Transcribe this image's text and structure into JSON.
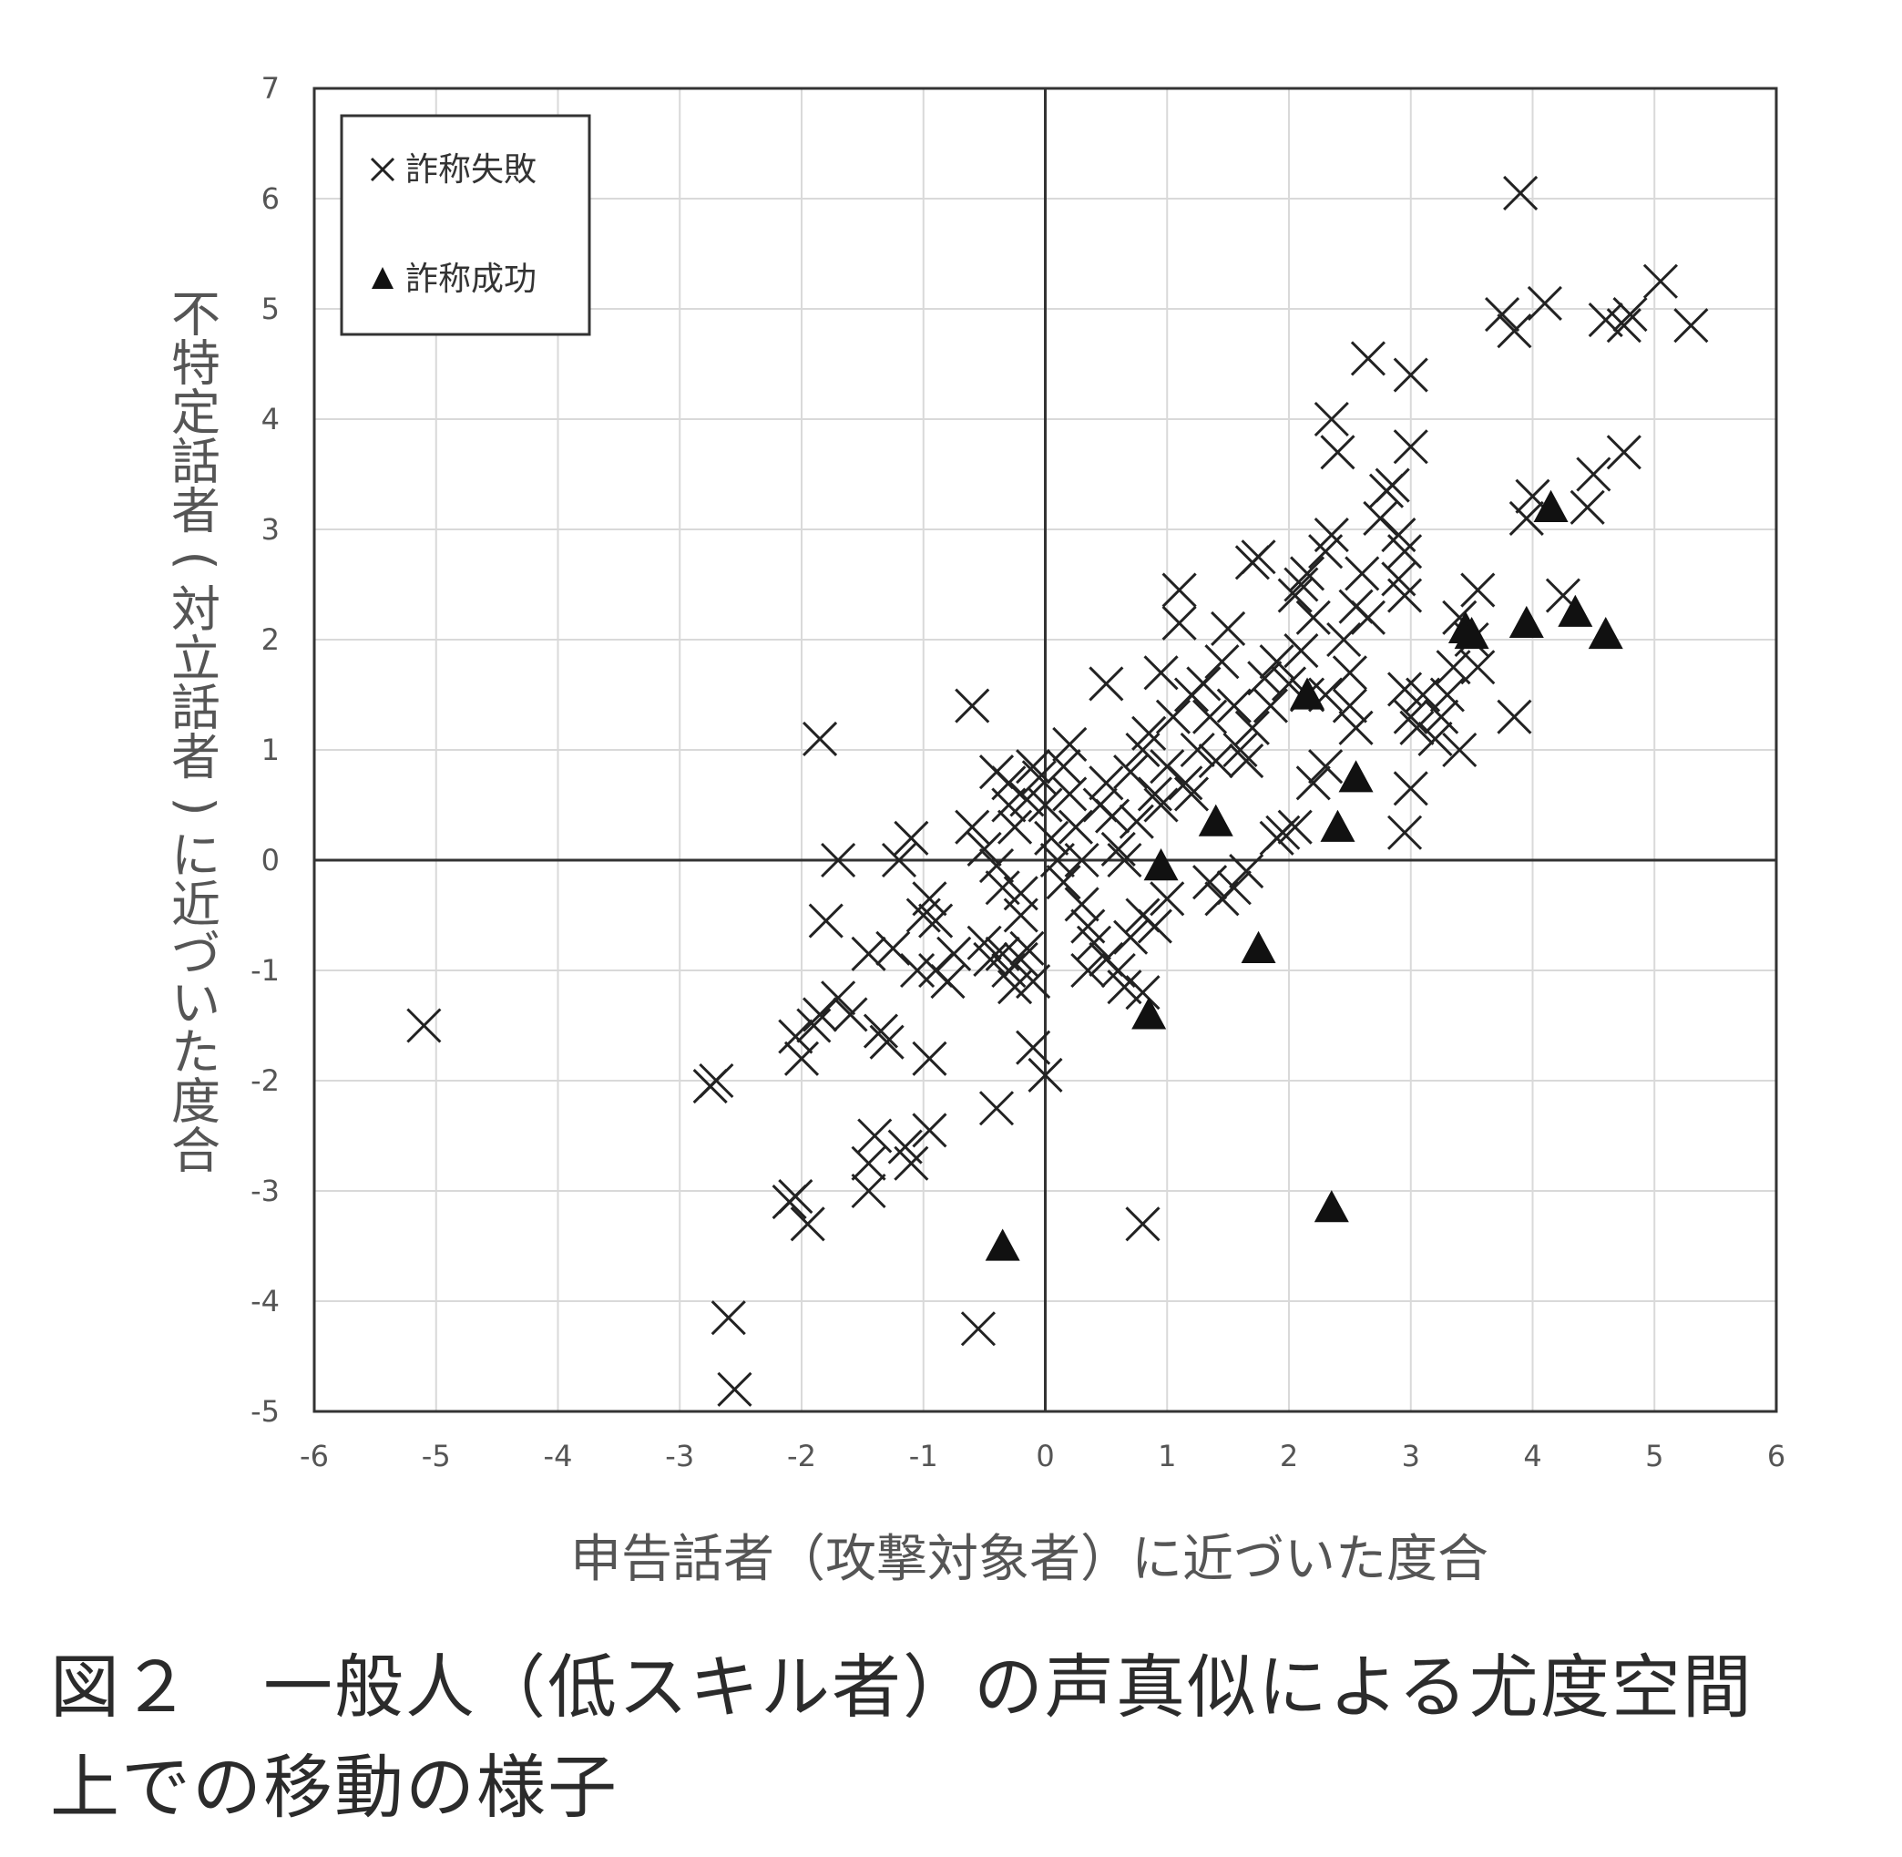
{
  "caption": {
    "line1": "図２　一般人（低スキル者）の声真似による尤度空間",
    "line2": "上での移動の様子"
  },
  "chart_data": {
    "type": "scatter",
    "xlabel": "申告話者（攻撃対象者）に近づいた度合",
    "ylabel": "不特定話者(対立話者)に近づいた度合",
    "xlim": [
      -6,
      6
    ],
    "ylim": [
      -5,
      7
    ],
    "x_ticks": [
      "-6",
      "-5",
      "-4",
      "-3",
      "-2",
      "-1",
      "0",
      "1",
      "2",
      "3",
      "4",
      "5",
      "6"
    ],
    "y_ticks": [
      "-5",
      "-4",
      "-3",
      "-2",
      "-1",
      "0",
      "1",
      "2",
      "3",
      "4",
      "5",
      "6",
      "7"
    ],
    "grid": true,
    "legend_position": "top-left",
    "series": [
      {
        "name": "詐称失敗",
        "marker": "x",
        "points": [
          [
            -5.1,
            -1.5
          ],
          [
            -2.7,
            -2.0
          ],
          [
            -2.75,
            -2.05
          ],
          [
            -2.6,
            -4.15
          ],
          [
            -2.55,
            -4.8
          ],
          [
            -2.05,
            -3.05
          ],
          [
            -2.1,
            -3.1
          ],
          [
            -1.95,
            -3.3
          ],
          [
            -1.85,
            1.1
          ],
          [
            -1.7,
            0.0
          ],
          [
            -1.8,
            -0.55
          ],
          [
            -2.05,
            -1.6
          ],
          [
            -2.0,
            -1.8
          ],
          [
            -1.9,
            -1.5
          ],
          [
            -1.85,
            -1.4
          ],
          [
            -1.7,
            -1.25
          ],
          [
            -1.6,
            -1.4
          ],
          [
            -1.45,
            -0.85
          ],
          [
            -1.35,
            -1.55
          ],
          [
            -1.3,
            -1.65
          ],
          [
            -1.25,
            -0.8
          ],
          [
            -1.2,
            0.0
          ],
          [
            -1.1,
            0.2
          ],
          [
            -1.0,
            -0.5
          ],
          [
            -0.95,
            -0.35
          ],
          [
            -0.9,
            -0.55
          ],
          [
            -1.05,
            -1.0
          ],
          [
            -0.95,
            -1.8
          ],
          [
            -1.4,
            -2.5
          ],
          [
            -1.45,
            -2.75
          ],
          [
            -1.45,
            -3.0
          ],
          [
            -1.15,
            -2.6
          ],
          [
            -1.1,
            -2.75
          ],
          [
            -0.95,
            -2.45
          ],
          [
            -0.6,
            1.4
          ],
          [
            -0.6,
            0.3
          ],
          [
            -0.5,
            0.1
          ],
          [
            -0.4,
            0.8
          ],
          [
            -0.3,
            0.7
          ],
          [
            -0.3,
            0.5
          ],
          [
            -0.25,
            0.3
          ],
          [
            -0.4,
            -0.05
          ],
          [
            -0.35,
            -0.25
          ],
          [
            -0.2,
            -0.3
          ],
          [
            -0.2,
            -0.5
          ],
          [
            -0.5,
            -0.75
          ],
          [
            -0.45,
            -0.9
          ],
          [
            -0.35,
            -0.85
          ],
          [
            -0.3,
            -1.0
          ],
          [
            -0.2,
            -0.9
          ],
          [
            -0.75,
            -0.85
          ],
          [
            -0.8,
            -1.1
          ],
          [
            -0.9,
            -1.0
          ],
          [
            -0.15,
            -0.8
          ],
          [
            -0.25,
            -1.15
          ],
          [
            -0.1,
            -1.1
          ],
          [
            -0.1,
            -1.7
          ],
          [
            0.0,
            -1.95
          ],
          [
            -0.4,
            -2.25
          ],
          [
            -0.55,
            -4.25
          ],
          [
            0.8,
            -3.3
          ],
          [
            0.8,
            -1.2
          ],
          [
            -0.1,
            0.85
          ],
          [
            -0.15,
            0.55
          ],
          [
            -0.05,
            0.75
          ],
          [
            0.0,
            0.5
          ],
          [
            0.05,
            0.2
          ],
          [
            0.1,
            0.0
          ],
          [
            0.15,
            -0.2
          ],
          [
            0.15,
            0.85
          ],
          [
            0.2,
            1.05
          ],
          [
            0.2,
            0.6
          ],
          [
            0.25,
            0.3
          ],
          [
            0.3,
            0.0
          ],
          [
            0.3,
            -0.4
          ],
          [
            0.35,
            -0.6
          ],
          [
            0.4,
            -0.75
          ],
          [
            0.35,
            -1.0
          ],
          [
            0.5,
            -0.9
          ],
          [
            0.6,
            -1.0
          ],
          [
            0.65,
            -1.15
          ],
          [
            0.7,
            -0.7
          ],
          [
            0.8,
            -0.5
          ],
          [
            0.9,
            -0.6
          ],
          [
            1.0,
            -0.35
          ],
          [
            0.45,
            0.5
          ],
          [
            0.5,
            0.7
          ],
          [
            0.55,
            0.4
          ],
          [
            0.5,
            1.6
          ],
          [
            0.6,
            0.1
          ],
          [
            0.65,
            0.0
          ],
          [
            0.75,
            0.35
          ],
          [
            0.7,
            0.8
          ],
          [
            0.8,
            1.0
          ],
          [
            0.85,
            1.15
          ],
          [
            0.9,
            0.6
          ],
          [
            0.95,
            1.7
          ],
          [
            0.95,
            0.5
          ],
          [
            1.0,
            0.85
          ],
          [
            1.05,
            1.3
          ],
          [
            1.1,
            2.15
          ],
          [
            1.1,
            2.45
          ],
          [
            1.15,
            0.7
          ],
          [
            1.2,
            1.5
          ],
          [
            1.2,
            0.6
          ],
          [
            1.3,
            1.6
          ],
          [
            1.25,
            1.0
          ],
          [
            1.35,
            1.3
          ],
          [
            1.4,
            0.9
          ],
          [
            1.35,
            -0.2
          ],
          [
            1.45,
            -0.35
          ],
          [
            1.55,
            -0.25
          ],
          [
            1.65,
            -0.1
          ],
          [
            1.45,
            1.8
          ],
          [
            1.5,
            2.1
          ],
          [
            1.55,
            1.4
          ],
          [
            1.6,
            1.0
          ],
          [
            1.65,
            0.9
          ],
          [
            1.7,
            1.2
          ],
          [
            1.7,
            2.7
          ],
          [
            1.75,
            2.75
          ],
          [
            1.8,
            1.65
          ],
          [
            1.85,
            1.4
          ],
          [
            1.9,
            1.8
          ],
          [
            1.9,
            0.2
          ],
          [
            1.95,
            0.25
          ],
          [
            2.05,
            0.3
          ],
          [
            2.0,
            1.6
          ],
          [
            2.05,
            2.4
          ],
          [
            2.1,
            2.5
          ],
          [
            2.15,
            2.6
          ],
          [
            2.1,
            1.9
          ],
          [
            2.15,
            1.5
          ],
          [
            2.2,
            2.2
          ],
          [
            2.2,
            0.7
          ],
          [
            2.3,
            0.85
          ],
          [
            2.3,
            1.5
          ],
          [
            2.3,
            2.8
          ],
          [
            2.35,
            2.95
          ],
          [
            2.35,
            4.0
          ],
          [
            2.4,
            3.7
          ],
          [
            2.45,
            2.0
          ],
          [
            2.5,
            1.7
          ],
          [
            2.5,
            1.4
          ],
          [
            2.55,
            2.3
          ],
          [
            2.55,
            1.2
          ],
          [
            2.6,
            2.6
          ],
          [
            2.65,
            2.2
          ],
          [
            2.65,
            4.55
          ],
          [
            2.75,
            3.1
          ],
          [
            2.8,
            3.35
          ],
          [
            2.85,
            3.4
          ],
          [
            2.9,
            2.95
          ],
          [
            2.9,
            2.55
          ],
          [
            2.95,
            2.8
          ],
          [
            2.95,
            2.4
          ],
          [
            2.95,
            1.55
          ],
          [
            3.0,
            4.4
          ],
          [
            3.0,
            3.75
          ],
          [
            3.0,
            1.3
          ],
          [
            3.05,
            1.2
          ],
          [
            3.0,
            0.65
          ],
          [
            2.95,
            0.25
          ],
          [
            3.1,
            1.5
          ],
          [
            3.2,
            1.1
          ],
          [
            3.25,
            1.3
          ],
          [
            3.3,
            1.5
          ],
          [
            3.35,
            1.75
          ],
          [
            3.4,
            1.0
          ],
          [
            3.4,
            2.2
          ],
          [
            3.55,
            2.45
          ],
          [
            3.55,
            1.75
          ],
          [
            3.5,
            2.0
          ],
          [
            3.75,
            4.95
          ],
          [
            3.85,
            4.8
          ],
          [
            3.9,
            6.05
          ],
          [
            3.85,
            1.3
          ],
          [
            3.95,
            3.1
          ],
          [
            4.0,
            3.3
          ],
          [
            4.1,
            5.05
          ],
          [
            4.25,
            2.4
          ],
          [
            4.5,
            3.5
          ],
          [
            4.45,
            3.2
          ],
          [
            4.75,
            3.7
          ],
          [
            4.6,
            4.9
          ],
          [
            4.8,
            4.95
          ],
          [
            4.75,
            4.85
          ],
          [
            5.05,
            5.25
          ],
          [
            5.3,
            4.85
          ]
        ]
      },
      {
        "name": "詐称成功",
        "marker": "triangle",
        "points": [
          [
            -0.35,
            -3.5
          ],
          [
            0.85,
            -1.4
          ],
          [
            0.95,
            -0.05
          ],
          [
            1.4,
            0.35
          ],
          [
            1.75,
            -0.8
          ],
          [
            2.15,
            1.5
          ],
          [
            2.4,
            0.3
          ],
          [
            2.55,
            0.75
          ],
          [
            2.35,
            -3.15
          ],
          [
            3.45,
            2.1
          ],
          [
            3.5,
            2.05
          ],
          [
            3.95,
            2.15
          ],
          [
            4.15,
            3.2
          ],
          [
            4.35,
            2.25
          ],
          [
            4.6,
            2.05
          ]
        ]
      }
    ]
  }
}
